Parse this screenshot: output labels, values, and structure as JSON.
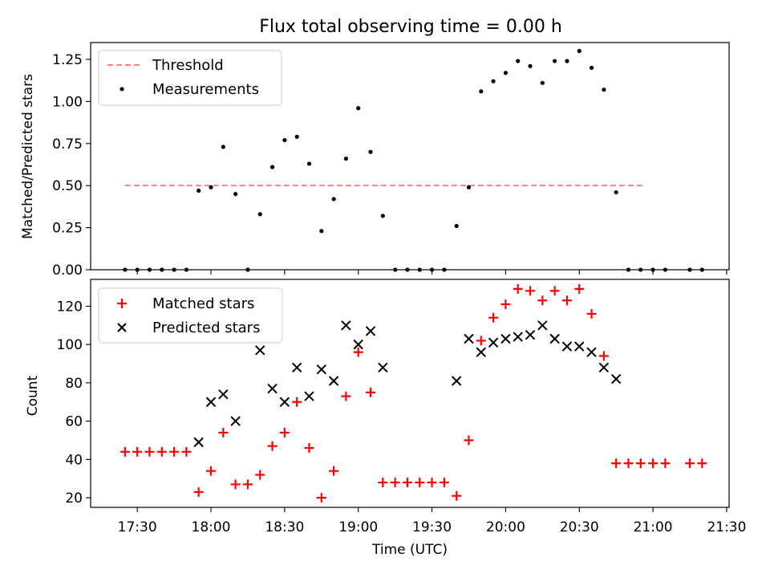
{
  "title": "Flux total observing time = 0.00 h",
  "chart_data": [
    {
      "type": "scatter",
      "title": "Flux total observing time = 0.00 h",
      "xlabel": "",
      "ylabel": "Matched/Predicted stars",
      "ylim": [
        0,
        1.35
      ],
      "yticks": [
        0.0,
        0.25,
        0.5,
        0.75,
        1.0,
        1.25
      ],
      "ytick_labels": [
        "0.00",
        "0.25",
        "0.50",
        "0.75",
        "1.00",
        "1.25"
      ],
      "grid": false,
      "legend_position": "top-left",
      "series": [
        {
          "name": "Threshold",
          "kind": "dashed-line",
          "color": "#ff7f7f",
          "x": [
            "17:25",
            "20:57"
          ],
          "y": [
            0.5,
            0.5
          ]
        },
        {
          "name": "Measurements",
          "kind": "dot",
          "color": "#000000",
          "x": [
            "17:25",
            "17:30",
            "17:35",
            "17:40",
            "17:45",
            "17:50",
            "17:55",
            "18:00",
            "18:05",
            "18:10",
            "18:15",
            "18:20",
            "18:25",
            "18:30",
            "18:35",
            "18:40",
            "18:45",
            "18:50",
            "18:55",
            "19:00",
            "19:05",
            "19:10",
            "19:15",
            "19:20",
            "19:25",
            "19:30",
            "19:35",
            "19:40",
            "19:45",
            "19:50",
            "19:55",
            "20:00",
            "20:05",
            "20:10",
            "20:15",
            "20:20",
            "20:25",
            "20:30",
            "20:35",
            "20:40",
            "20:45",
            "20:50",
            "20:55",
            "21:00",
            "21:05",
            "21:15",
            "21:20"
          ],
          "y": [
            0,
            0,
            0,
            0,
            0,
            0,
            0.47,
            0.49,
            0.73,
            0.45,
            0,
            0.33,
            0.61,
            0.77,
            0.79,
            0.63,
            0.23,
            0.42,
            0.66,
            0.96,
            0.7,
            0.32,
            0,
            0,
            0,
            0,
            0,
            0.26,
            0.49,
            1.06,
            1.12,
            1.17,
            1.24,
            1.21,
            1.11,
            1.24,
            1.24,
            1.3,
            1.2,
            1.07,
            0.46,
            0,
            0,
            0,
            0,
            0,
            0
          ]
        }
      ]
    },
    {
      "type": "scatter",
      "xlabel": "Time (UTC)",
      "ylabel": "Count",
      "ylim": [
        15,
        134
      ],
      "yticks": [
        20,
        40,
        60,
        80,
        100,
        120
      ],
      "ytick_labels": [
        "20",
        "40",
        "60",
        "80",
        "100",
        "120"
      ],
      "xlim": [
        "17:11",
        "21:31"
      ],
      "xticks": [
        "17:30",
        "18:00",
        "18:30",
        "19:00",
        "19:30",
        "20:00",
        "20:30",
        "21:00",
        "21:30"
      ],
      "xtick_labels": [
        "17:30",
        "18:00",
        "18:30",
        "19:00",
        "19:30",
        "20:00",
        "20:30",
        "21:00",
        "21:30"
      ],
      "grid": false,
      "legend_position": "top-left",
      "series": [
        {
          "name": "Matched stars",
          "marker": "plus",
          "color": "#ff0000",
          "x": [
            "17:25",
            "17:30",
            "17:35",
            "17:40",
            "17:45",
            "17:50",
            "17:55",
            "18:00",
            "18:05",
            "18:10",
            "18:15",
            "18:20",
            "18:25",
            "18:30",
            "18:35",
            "18:40",
            "18:45",
            "18:50",
            "18:55",
            "19:00",
            "19:05",
            "19:10",
            "19:15",
            "19:20",
            "19:25",
            "19:30",
            "19:35",
            "19:40",
            "19:45",
            "19:50",
            "19:55",
            "20:00",
            "20:05",
            "20:10",
            "20:15",
            "20:20",
            "20:25",
            "20:30",
            "20:35",
            "20:40",
            "20:45",
            "20:50",
            "20:55",
            "21:00",
            "21:05",
            "21:15",
            "21:20"
          ],
          "y": [
            44,
            44,
            44,
            44,
            44,
            44,
            23,
            34,
            54,
            27,
            27,
            32,
            47,
            54,
            70,
            46,
            20,
            34,
            73,
            96,
            75,
            28,
            28,
            28,
            28,
            28,
            28,
            21,
            50,
            102,
            114,
            121,
            129,
            128,
            123,
            128,
            123,
            129,
            116,
            94,
            38,
            38,
            38,
            38,
            38,
            38,
            38
          ]
        },
        {
          "name": "Predicted stars",
          "marker": "x",
          "color": "#000000",
          "x": [
            "17:55",
            "18:00",
            "18:05",
            "18:10",
            "18:20",
            "18:25",
            "18:30",
            "18:35",
            "18:40",
            "18:45",
            "18:50",
            "18:55",
            "19:00",
            "19:05",
            "19:10",
            "19:40",
            "19:45",
            "19:50",
            "19:55",
            "20:00",
            "20:05",
            "20:10",
            "20:15",
            "20:20",
            "20:25",
            "20:30",
            "20:35",
            "20:40",
            "20:45"
          ],
          "y": [
            49,
            70,
            74,
            60,
            97,
            77,
            70,
            88,
            73,
            87,
            81,
            110,
            100,
            107,
            88,
            81,
            103,
            96,
            101,
            103,
            104,
            105,
            110,
            103,
            99,
            99,
            96,
            88,
            82
          ]
        }
      ]
    }
  ]
}
